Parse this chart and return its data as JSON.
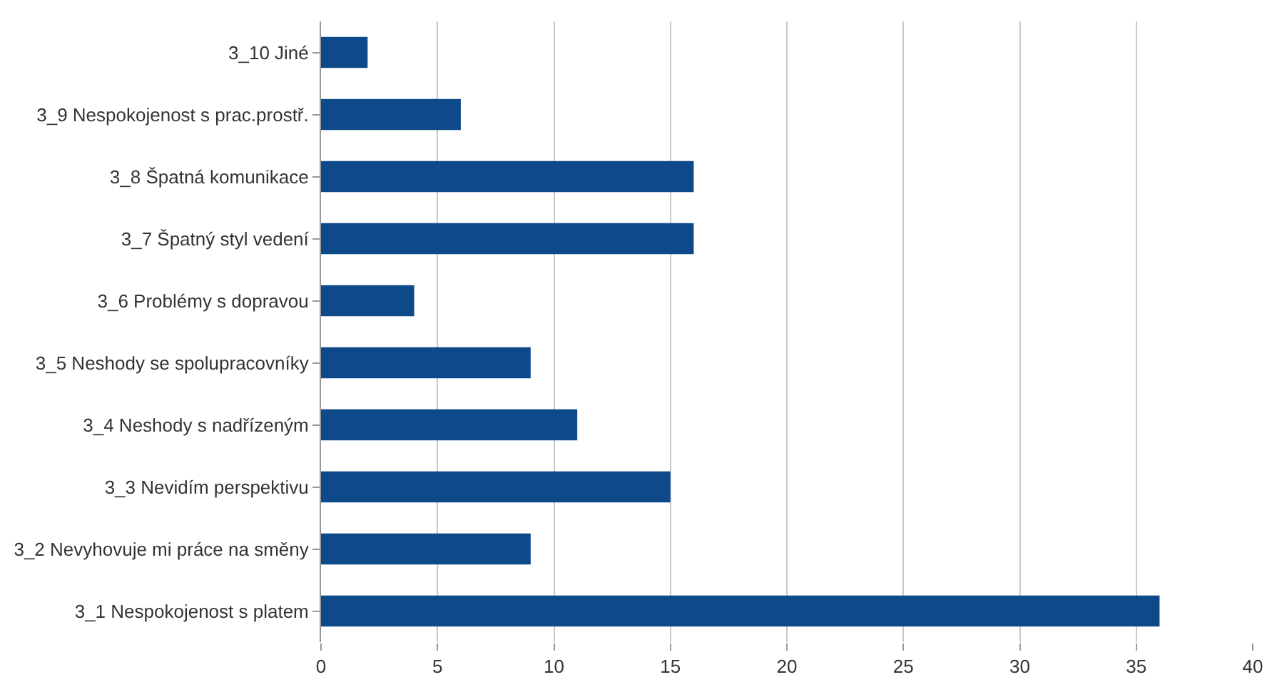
{
  "chart_data": {
    "type": "bar",
    "orientation": "horizontal",
    "categories": [
      "3_10 Jiné",
      "3_9 Nespokojenost s prac.prostř.",
      "3_8 Špatná komunikace",
      "3_7 Špatný styl vedení",
      "3_6 Problémy s dopravou",
      "3_5 Neshody se spolupracovníky",
      "3_4 Neshody s nadřízeným",
      "3_3 Nevidím perspektivu",
      "3_2 Nevyhovuje mi práce na směny",
      "3_1 Nespokojenost s platem"
    ],
    "values": [
      2,
      6,
      16,
      16,
      4,
      9,
      11,
      15,
      9,
      36
    ],
    "color": "#0e4a8a",
    "xlim": [
      0,
      40
    ],
    "xticks": [
      0,
      5,
      10,
      15,
      20,
      25,
      30,
      35,
      40
    ],
    "grid": "x"
  }
}
